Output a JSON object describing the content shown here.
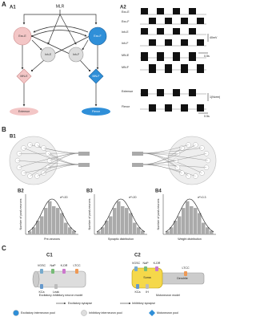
{
  "panel_labels": {
    "a": "A",
    "a1": "A1",
    "a2": "A2",
    "b": "B",
    "b1": "B1",
    "b2": "B2",
    "b3": "B3",
    "b4": "B4",
    "c": "C",
    "c1": "C1",
    "c2": "C2"
  },
  "a1": {
    "mlr": "MLR",
    "nodes": [
      "Exc-E",
      "Exc-F",
      "Inh-E",
      "Inh-F",
      "MN-E",
      "MN-F"
    ],
    "muscles": [
      "Extensor",
      "Flexor"
    ]
  },
  "a2": {
    "traces": [
      "Exc-E",
      "Exc-F",
      "Inh-E",
      "Inh-F",
      "MN-E",
      "MN-F",
      "Extensor",
      "Flexor"
    ],
    "scales": [
      "40mV",
      "0.5s",
      "1(Norm)",
      "0.5s"
    ]
  },
  "b": {
    "variances": [
      "σ²=20",
      "σ²=20",
      "σ²=0.3"
    ],
    "y_label": "Number of post-neurons",
    "x_labels": [
      "Pre-neurons",
      "Synaptic distribution",
      "Weight distribution"
    ]
  },
  "c": {
    "c1": {
      "channels": [
        "VGSC",
        "NaP",
        "K-DR",
        "LTCC",
        "KCa",
        "Leak"
      ],
      "caption": "Excitatory-Inhibitory neuron model"
    },
    "c2": {
      "channels": [
        "VGSC",
        "NaP",
        "K-DR",
        "LTCC",
        "KCa",
        "IH"
      ],
      "soma": "Soma",
      "dendrite": "Dendrite",
      "caption": "Motoneuron model"
    },
    "legend": {
      "synapses": [
        "Excitatory synapse",
        "Inhibitory synapse"
      ],
      "pools": [
        "Excitatory interneuron pool",
        "Inhibitory interneuron pool",
        "Motoneuron pool"
      ]
    }
  }
}
